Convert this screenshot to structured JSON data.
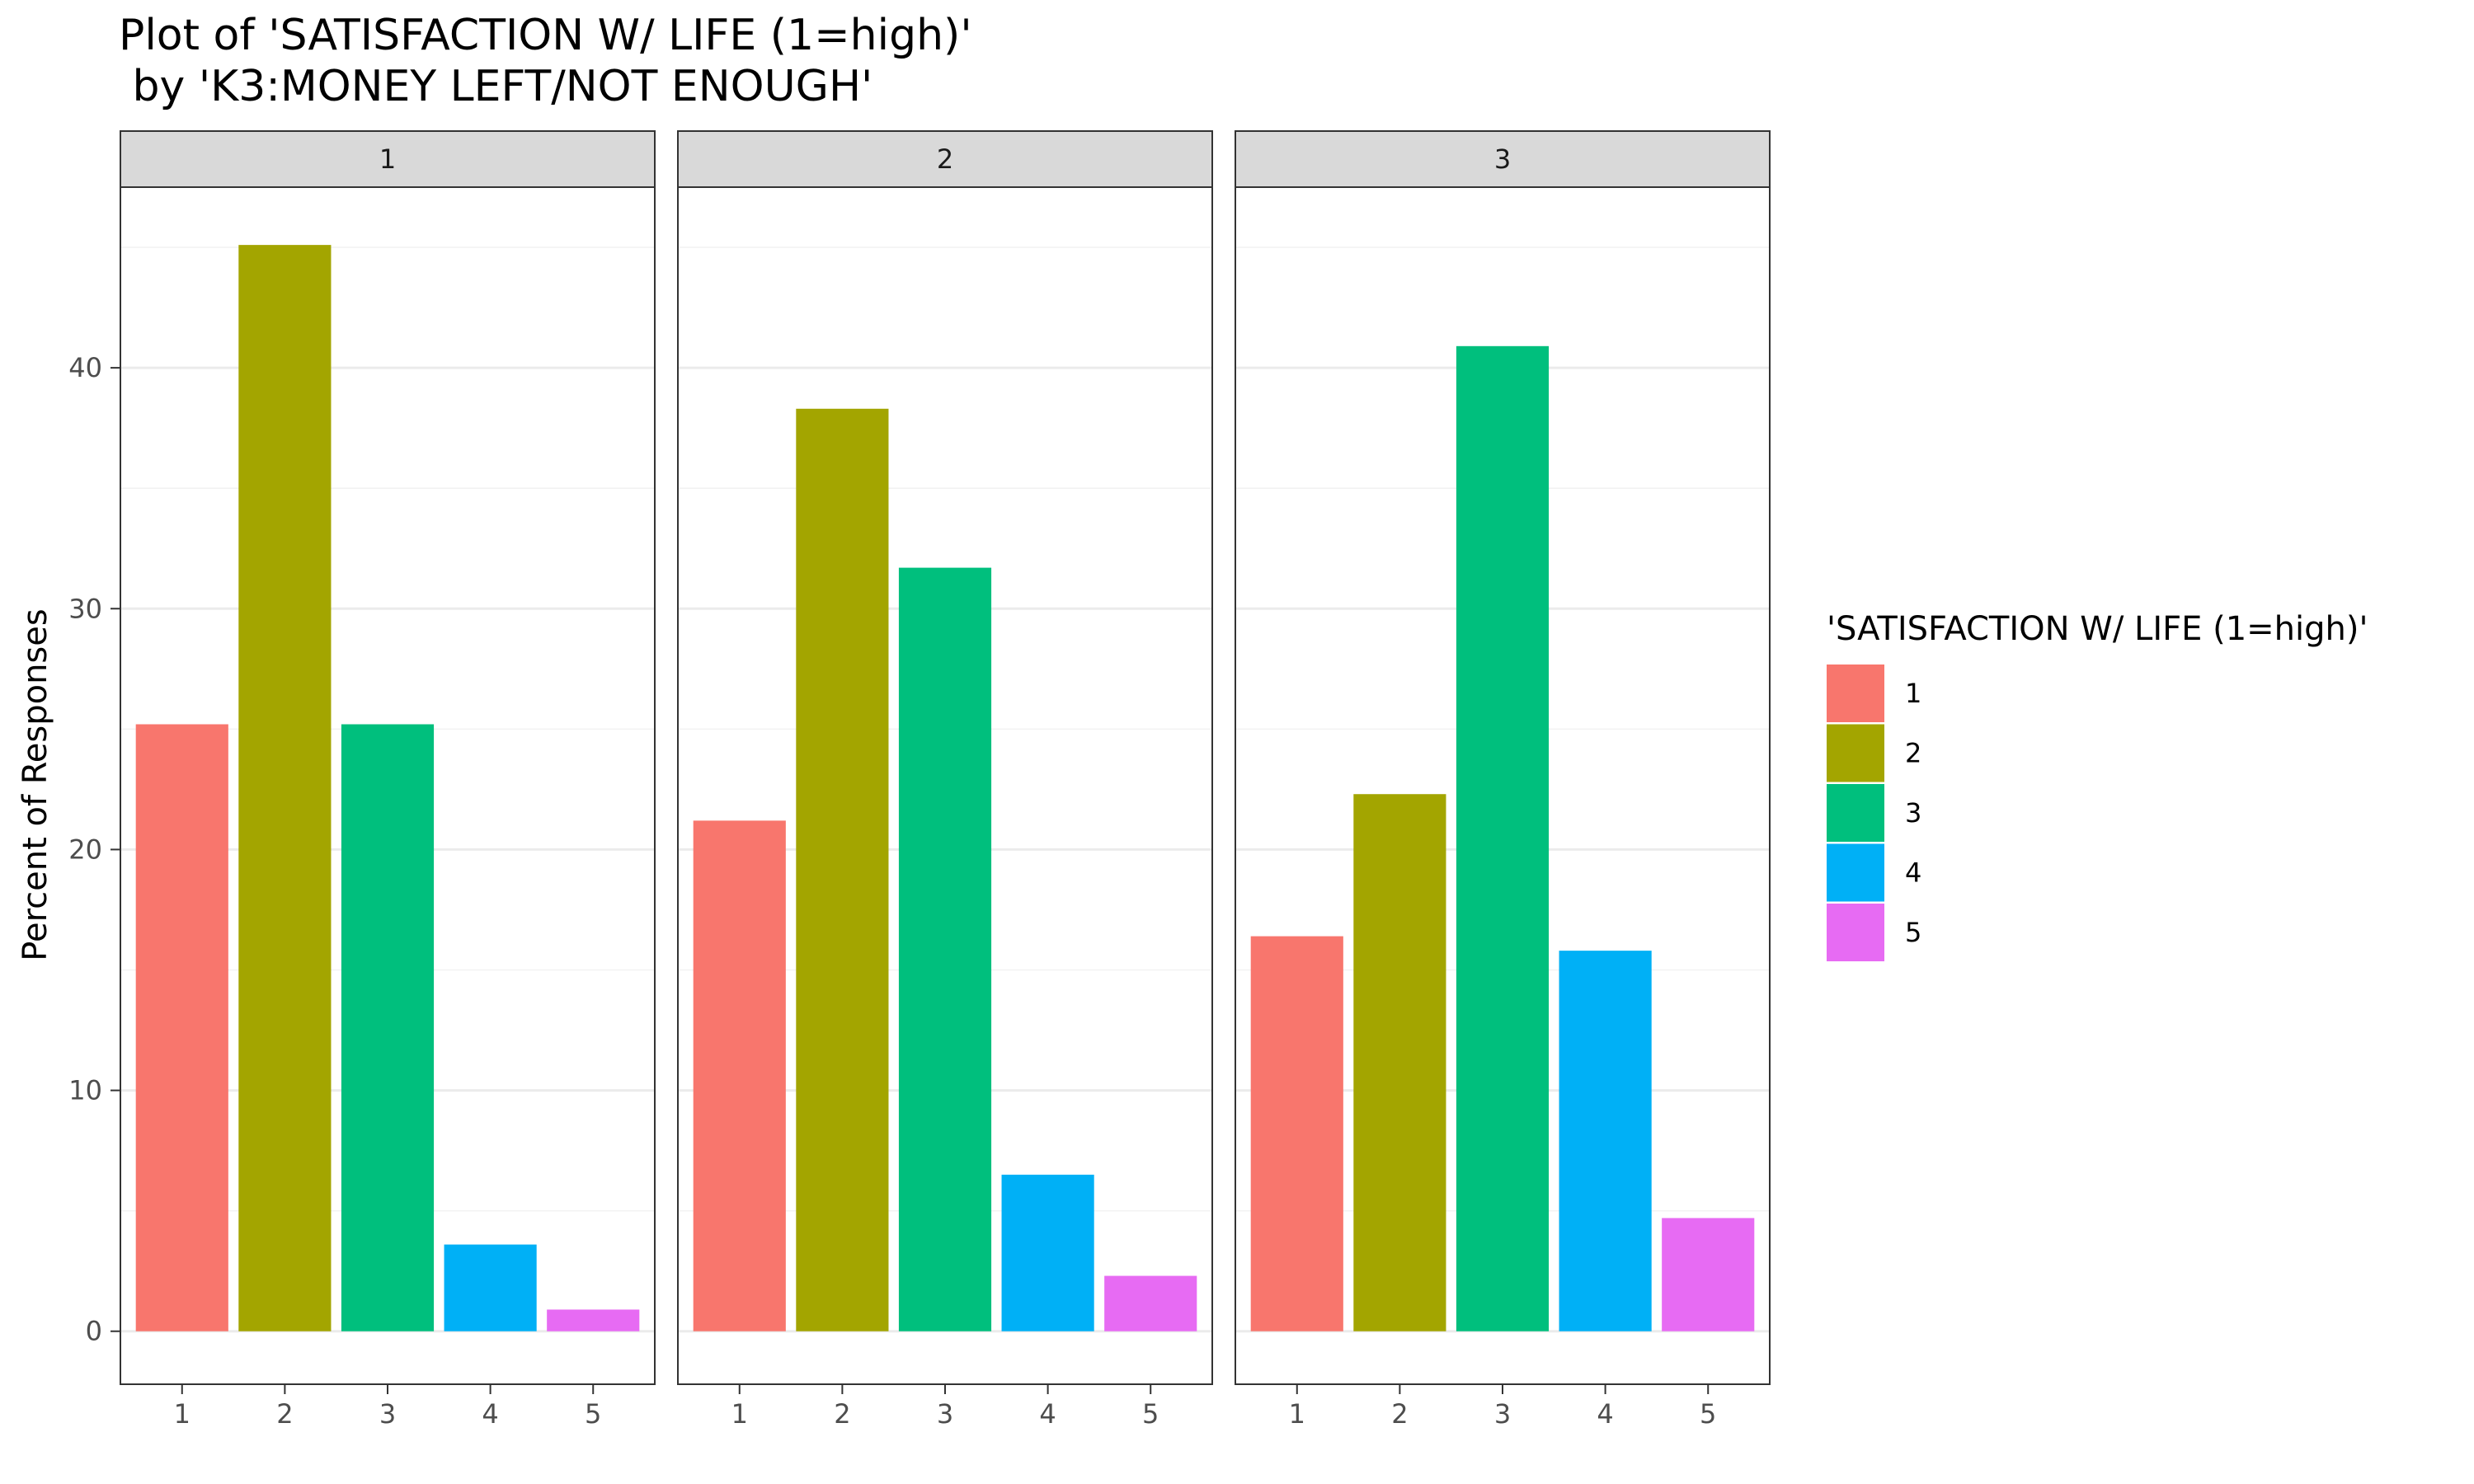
{
  "chart_data": {
    "type": "bar",
    "title": [
      "Plot of 'SATISFACTION W/ LIFE (1=high)'",
      " by 'K3:MONEY LEFT/NOT ENOUGH'"
    ],
    "ylabel": "Percent of Responses",
    "xlabel": "",
    "ylim": [
      -2.2,
      47.5
    ],
    "yticks": [
      0,
      10,
      20,
      30,
      40
    ],
    "grid": true,
    "legend": {
      "title": "'SATISFACTION W/ LIFE (1=high)'",
      "placement": "right",
      "entries": [
        "1",
        "2",
        "3",
        "4",
        "5"
      ]
    },
    "colors": [
      "#F8766D",
      "#A3A500",
      "#00BF7D",
      "#00B0F6",
      "#E76BF3"
    ],
    "categories": [
      "1",
      "2",
      "3",
      "4",
      "5"
    ],
    "facets": [
      {
        "label": "1",
        "values": [
          25.2,
          45.1,
          25.2,
          3.6,
          0.9
        ]
      },
      {
        "label": "2",
        "values": [
          21.2,
          38.3,
          31.7,
          6.5,
          2.3
        ]
      },
      {
        "label": "3",
        "values": [
          16.4,
          22.3,
          40.9,
          15.8,
          4.7
        ]
      }
    ]
  }
}
